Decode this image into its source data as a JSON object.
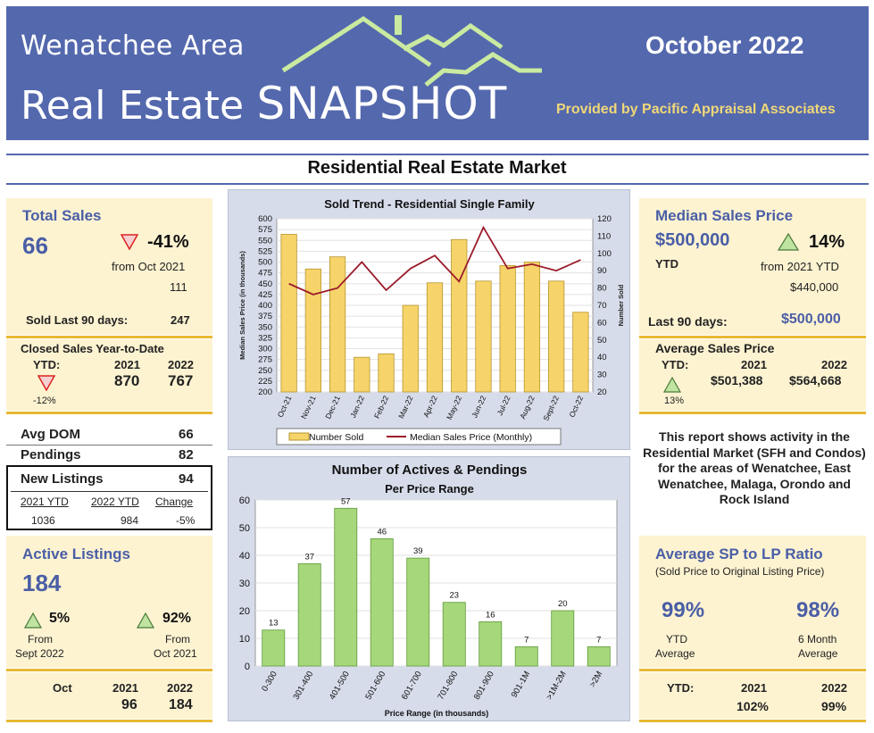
{
  "header": {
    "brand_line1": "Wenatchee Area",
    "brand_line2_a": "Real Estate ",
    "brand_line2_b": "SNAPSHOT",
    "month": "October 2022",
    "provided_by": "Provided by Pacific Appraisal Associates",
    "colors": {
      "banner": "#5468ad",
      "roof": "#c9eaa0",
      "provided": "#f0d878"
    }
  },
  "section_title": "Residential Real Estate Market",
  "total_sales": {
    "title": "Total Sales",
    "value": "66",
    "change_pct": "-41%",
    "change_label": "from Oct 2021",
    "prior_value": "111",
    "last90_label": "Sold Last 90 days:",
    "last90_value": "247",
    "trend": "down"
  },
  "closed_ytd": {
    "title": "Closed Sales Year-to-Date",
    "ytd_label": "YTD:",
    "year1": "2021",
    "year2": "2022",
    "value1": "870",
    "value2": "767",
    "change": "-12%",
    "trend": "down"
  },
  "stats": {
    "avg_dom_label": "Avg DOM",
    "avg_dom_value": "66",
    "pendings_label": "Pendings",
    "pendings_value": "82",
    "new_listings_label": "New Listings",
    "new_listings_value": "94",
    "col1": "2021 YTD",
    "col2": "2022 YTD",
    "col3": "Change",
    "v1": "1036",
    "v2": "984",
    "v3": "-5%"
  },
  "active_listings": {
    "title": "Active Listings",
    "value": "184",
    "pct1": "5%",
    "pct1_l1": "From",
    "pct1_l2": "Sept 2022",
    "pct2": "92%",
    "pct2_l1": "From",
    "pct2_l2": "Oct 2021",
    "trend": "up"
  },
  "oct_row": {
    "label": "Oct",
    "year1": "2021",
    "year2": "2022",
    "value1": "96",
    "value2": "184"
  },
  "median_price": {
    "title": "Median Sales Price",
    "value": "$500,000",
    "ytd_label": "YTD",
    "change_pct": "14%",
    "change_label": "from 2021 YTD",
    "prior_value": "$440,000",
    "last90_label": "Last 90 days:",
    "last90_value": "$500,000",
    "trend": "up"
  },
  "avg_price": {
    "title": "Average Sales Price",
    "ytd_label": "YTD:",
    "year1": "2021",
    "year2": "2022",
    "value1": "$501,388",
    "value2": "$564,668",
    "change": "13%",
    "trend": "up"
  },
  "report_note": "This report shows activity in the Residential Market (SFH and Condos) for the areas of Wenatchee, East Wenatchee, Malaga, Orondo and Rock Island",
  "sp_lp": {
    "title": "Average SP to LP Ratio",
    "subtitle": "(Sold Price to Original Listing Price)",
    "v1": "99%",
    "v1_l1": "YTD",
    "v1_l2": "Average",
    "v2": "98%",
    "v2_l1": "6 Month",
    "v2_l2": "Average",
    "ytd_label": "YTD:",
    "year1": "2021",
    "year2": "2022",
    "r1": "102%",
    "r2": "99%"
  },
  "chart_data": [
    {
      "type": "bar",
      "title": "Sold Trend - Residential Single Family",
      "ylabel": "Median Sales Price (in thousands)",
      "y2label": "Number Sold",
      "categories": [
        "Oct-21",
        "Nov-21",
        "Dec-21",
        "Jan-22",
        "Feb-22",
        "Mar-22",
        "Apr-22",
        "May-22",
        "Jun-22",
        "Jul-22",
        "Aug-22",
        "Sept-22",
        "Oct-22"
      ],
      "ylim": [
        200,
        600
      ],
      "y2lim": [
        20,
        120
      ],
      "yticks": [
        200,
        225,
        250,
        275,
        300,
        325,
        350,
        375,
        400,
        425,
        450,
        475,
        500,
        525,
        550,
        575,
        600
      ],
      "y2ticks": [
        20,
        30,
        40,
        50,
        60,
        70,
        80,
        90,
        100,
        110,
        120
      ],
      "series": [
        {
          "name": "Number Sold",
          "kind": "bar",
          "axis": "right",
          "color": "#f7d46a",
          "values": [
            111,
            91,
            98,
            40,
            42,
            70,
            83,
            108,
            84,
            93,
            95,
            84,
            66
          ]
        },
        {
          "name": "Median Sales Price (Monthly)",
          "kind": "line",
          "axis": "left",
          "color": "#9b1c2a",
          "values": [
            450,
            425,
            440,
            500,
            435,
            485,
            515,
            455,
            580,
            485,
            495,
            480,
            505
          ]
        }
      ],
      "legend": "bottom"
    },
    {
      "type": "bar",
      "title": "Number of Actives & Pendings",
      "subtitle": "Per Price Range",
      "xlabel": "Price Range (in thousands)",
      "categories": [
        "0-300",
        "301-400",
        "401-500",
        "501-600",
        "601-700",
        "701-800",
        "801-900",
        "901-1M",
        ">1M-2M",
        ">2M"
      ],
      "values": [
        13,
        37,
        57,
        46,
        39,
        23,
        16,
        7,
        20,
        7
      ],
      "ylim": [
        0,
        60
      ],
      "yticks": [
        0,
        10,
        20,
        30,
        40,
        50,
        60
      ],
      "color": "#a6d77a"
    }
  ]
}
